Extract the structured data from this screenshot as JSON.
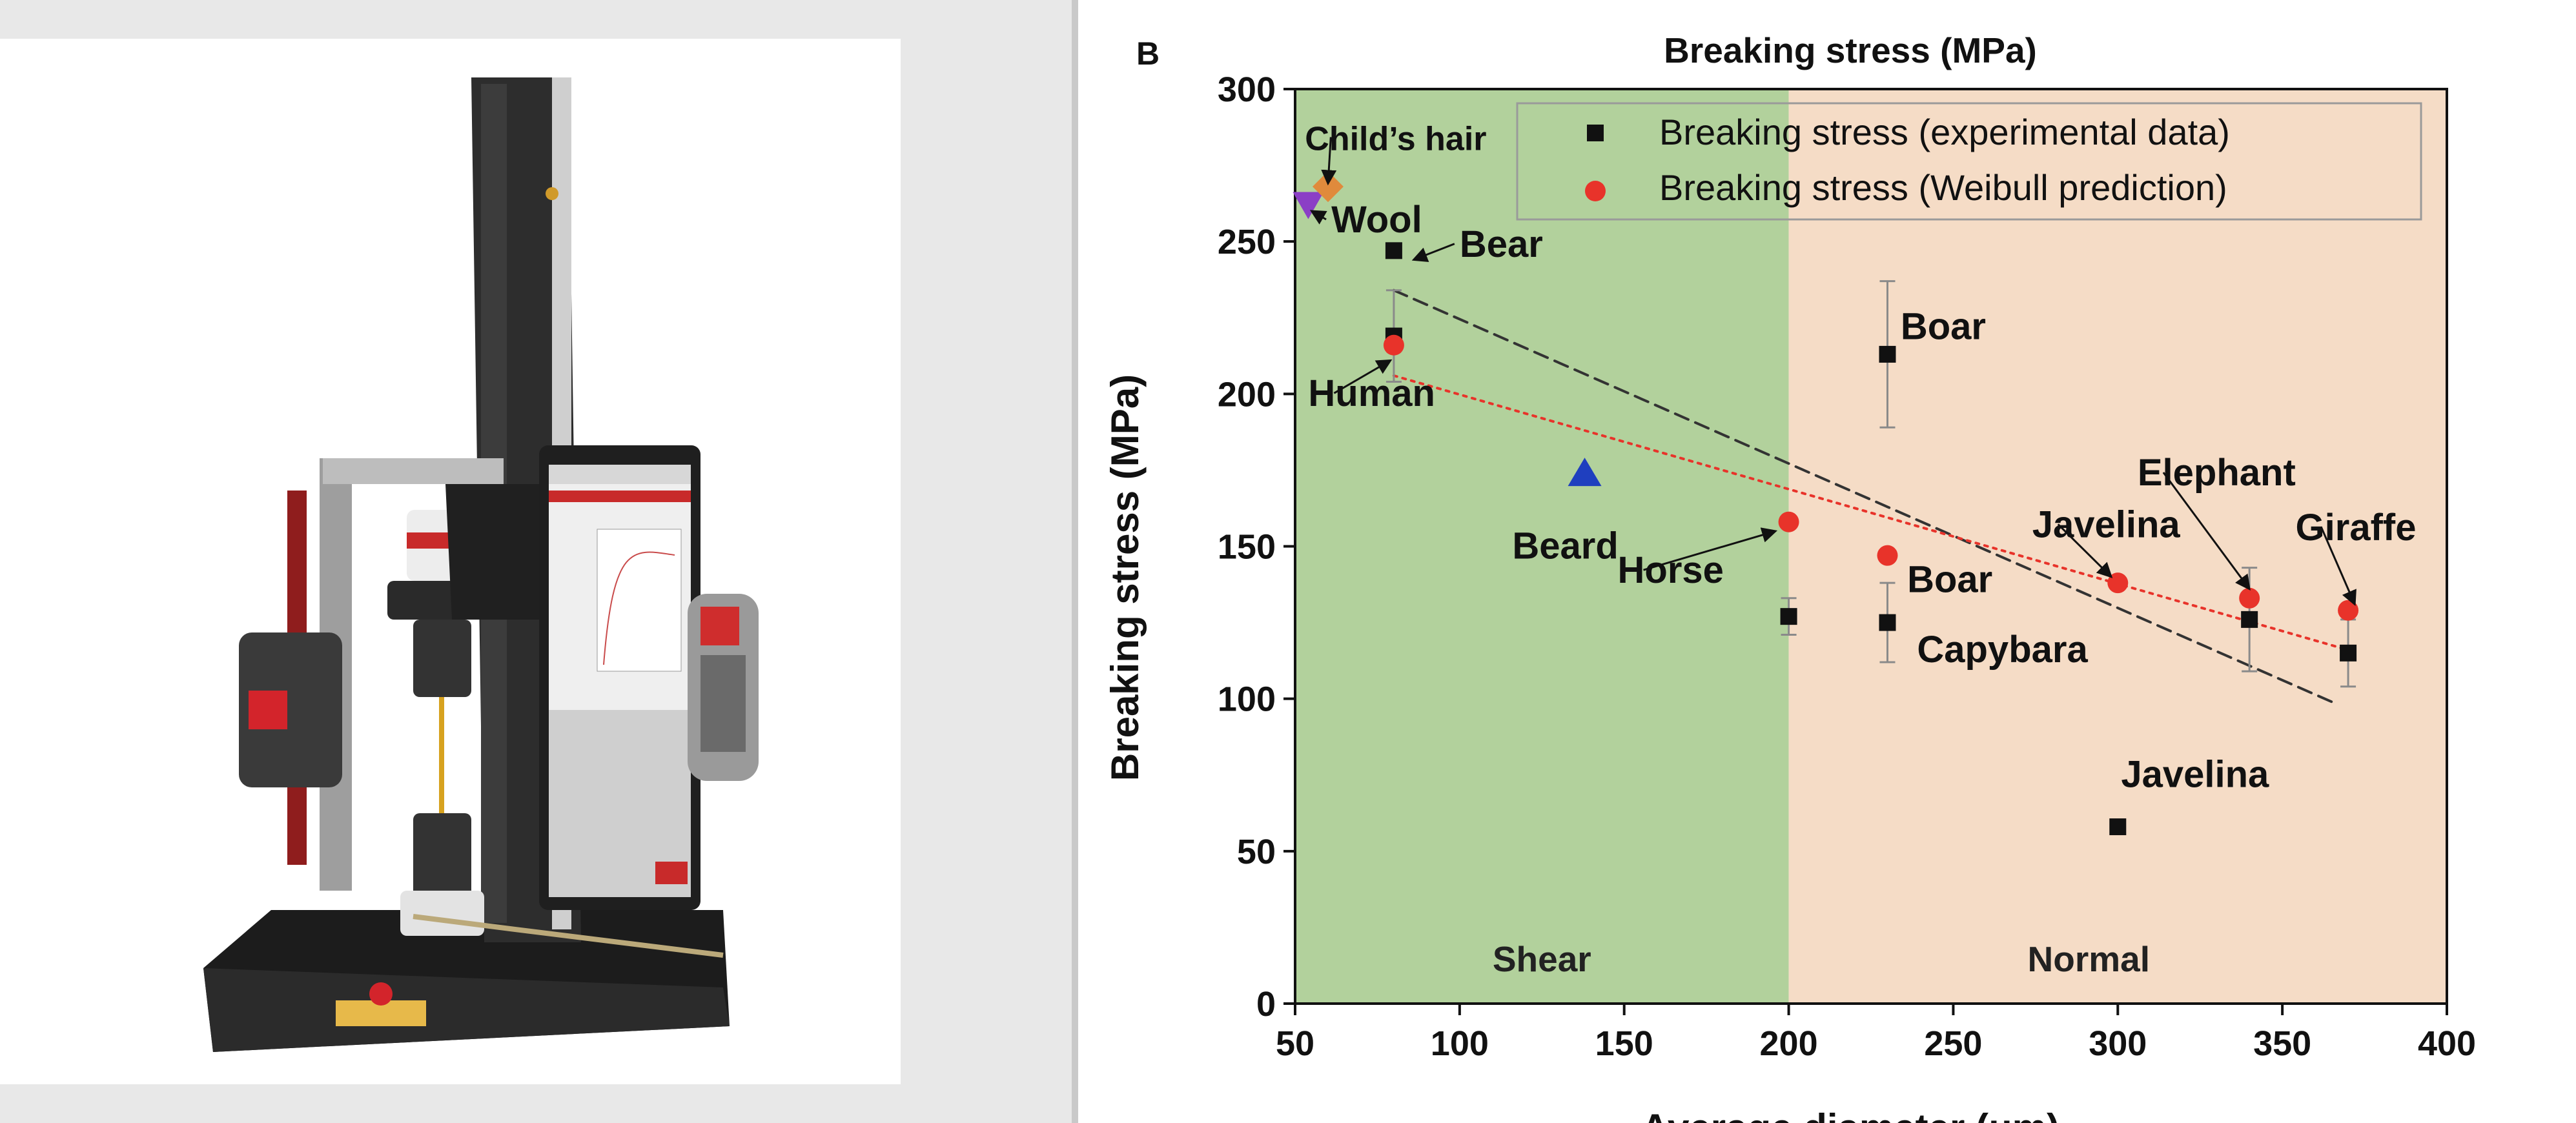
{
  "photo": {
    "description_icon": "universal-testing-machine-photo"
  },
  "panel_label": "B",
  "colors": {
    "shear_region": "#b2d19c",
    "normal_region": "#f5dcc6",
    "experimental": "#111111",
    "weibull": "#e8332a",
    "wool": "#8b3fc6",
    "childs_hair": "#e08a3c",
    "beard": "#1f3fbf"
  },
  "chart_data": {
    "type": "scatter",
    "title": "Breaking stress (MPa)",
    "xlabel": "Average diameter (μm)",
    "ylabel": "Breaking stress (MPa)",
    "xlim": [
      50,
      400
    ],
    "ylim": [
      0,
      300
    ],
    "xticks": [
      50,
      100,
      150,
      200,
      250,
      300,
      350,
      400
    ],
    "yticks": [
      0,
      50,
      100,
      150,
      200,
      250,
      300
    ],
    "regions": [
      {
        "label": "Shear",
        "x": [
          50,
          200
        ]
      },
      {
        "label": "Normal",
        "x": [
          200,
          400
        ]
      }
    ],
    "legend": {
      "position": "top-right",
      "entries": [
        {
          "marker": "square",
          "label": "Breaking stress (experimental data)"
        },
        {
          "marker": "circle",
          "label": "Breaking stress (Weibull prediction)"
        }
      ]
    },
    "series": [
      {
        "name": "Breaking stress (experimental data)",
        "marker": "square",
        "points": [
          {
            "x": 80,
            "y": 247,
            "err": 0
          },
          {
            "x": 80,
            "y": 219,
            "err": 15
          },
          {
            "x": 200,
            "y": 127,
            "err": 6
          },
          {
            "x": 230,
            "y": 213,
            "err": 24
          },
          {
            "x": 230,
            "y": 125,
            "err": 13
          },
          {
            "x": 300,
            "y": 58,
            "err": 0
          },
          {
            "x": 340,
            "y": 126,
            "err": 17
          },
          {
            "x": 370,
            "y": 115,
            "err": 11
          }
        ]
      },
      {
        "name": "Breaking stress (Weibull prediction)",
        "marker": "circle",
        "points": [
          {
            "x": 80,
            "y": 216
          },
          {
            "x": 200,
            "y": 158
          },
          {
            "x": 230,
            "y": 147
          },
          {
            "x": 300,
            "y": 138
          },
          {
            "x": 340,
            "y": 133
          },
          {
            "x": 370,
            "y": 129
          }
        ]
      },
      {
        "marker": "triangle-down",
        "points": [
          {
            "x": 54,
            "y": 262
          }
        ]
      },
      {
        "marker": "diamond",
        "points": [
          {
            "x": 60,
            "y": 268
          }
        ]
      },
      {
        "marker": "triangle-up",
        "points": [
          {
            "x": 138,
            "y": 174
          }
        ]
      }
    ],
    "trendlines": [
      {
        "style": "dashed-black",
        "x": [
          80,
          365
        ],
        "y": [
          234,
          99
        ]
      },
      {
        "style": "dotted-red",
        "x": [
          80,
          370
        ],
        "y": [
          206,
          116
        ]
      }
    ],
    "annotations": [
      {
        "text": "Child’s hair",
        "at": [
          53,
          280
        ],
        "arrow_to": [
          60,
          269
        ]
      },
      {
        "text": "Wool",
        "at": [
          61,
          253
        ],
        "arrow_to": [
          55,
          260
        ]
      },
      {
        "text": "Bear",
        "at": [
          100,
          245
        ],
        "arrow_to": [
          86,
          244
        ]
      },
      {
        "text": "Human",
        "at": [
          54,
          196
        ],
        "arrow_to": [
          79,
          211
        ]
      },
      {
        "text": "Boar",
        "at": [
          234,
          218
        ],
        "arrow_to": null
      },
      {
        "text": "Beard",
        "at": [
          116,
          146
        ],
        "arrow_to": null
      },
      {
        "text": "Horse",
        "at": [
          148,
          138
        ],
        "arrow_to": [
          196,
          155
        ]
      },
      {
        "text": "Boar",
        "at": [
          236,
          135
        ],
        "arrow_to": null
      },
      {
        "text": "Capybara",
        "at": [
          239,
          112
        ],
        "arrow_to": null
      },
      {
        "text": "Javelina",
        "at": [
          274,
          153
        ],
        "arrow_to": [
          298,
          140
        ]
      },
      {
        "text": "Elephant",
        "at": [
          306,
          170
        ],
        "arrow_to": [
          340,
          136
        ]
      },
      {
        "text": "Giraffe",
        "at": [
          354,
          152
        ],
        "arrow_to": [
          372,
          131
        ]
      },
      {
        "text": "Javelina",
        "at": [
          301,
          71
        ],
        "arrow_to": null
      }
    ]
  }
}
